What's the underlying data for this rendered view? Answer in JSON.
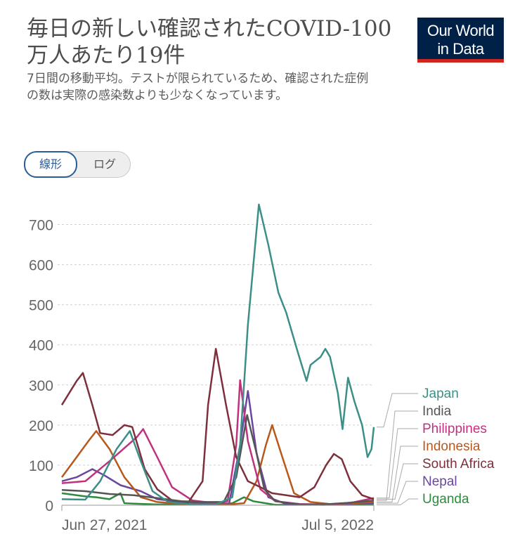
{
  "header": {
    "title": "毎日の新しい確認されたCOVID-100万人あたり19件",
    "subtitle": "7日間の移動平均。テストが限られているため、確認された症例の数は実際の感染数よりも少なくなっています。"
  },
  "logo": {
    "line1": "Our World",
    "line2": "in Data"
  },
  "scale_toggle": {
    "linear_label": "線形",
    "log_label": "ログ",
    "selected": "linear"
  },
  "colors": {
    "Japan": "#3b8f86",
    "India": "#555555",
    "Philippines": "#c0327e",
    "Indonesia": "#b7591d",
    "South Africa": "#7e2f3c",
    "Nepal": "#6b46a0",
    "Uganda": "#2f8a3e"
  },
  "chart_data": {
    "type": "line",
    "x_start_label": "Jun 27, 2021",
    "x_end_label": "Jul 5, 2022",
    "x_range": [
      "2021-06-01",
      "2022-07-05"
    ],
    "ylim": [
      0,
      750
    ],
    "yticks": [
      0,
      100,
      200,
      300,
      400,
      500,
      600,
      700
    ],
    "grid": true,
    "legend": "right",
    "series": [
      {
        "name": "Japan",
        "points": [
          [
            "2021-06-01",
            15
          ],
          [
            "2021-07-01",
            14
          ],
          [
            "2021-07-20",
            60
          ],
          [
            "2021-08-10",
            140
          ],
          [
            "2021-08-27",
            185
          ],
          [
            "2021-09-10",
            110
          ],
          [
            "2021-09-25",
            35
          ],
          [
            "2021-10-15",
            8
          ],
          [
            "2021-11-15",
            2
          ],
          [
            "2021-12-15",
            2
          ],
          [
            "2022-01-05",
            20
          ],
          [
            "2022-01-15",
            150
          ],
          [
            "2022-01-25",
            450
          ],
          [
            "2022-02-08",
            750
          ],
          [
            "2022-02-20",
            650
          ],
          [
            "2022-03-05",
            530
          ],
          [
            "2022-03-15",
            480
          ],
          [
            "2022-03-30",
            380
          ],
          [
            "2022-04-10",
            310
          ],
          [
            "2022-04-15",
            350
          ],
          [
            "2022-04-28",
            370
          ],
          [
            "2022-05-04",
            390
          ],
          [
            "2022-05-10",
            370
          ],
          [
            "2022-05-20",
            280
          ],
          [
            "2022-05-26",
            190
          ],
          [
            "2022-06-02",
            318
          ],
          [
            "2022-06-10",
            260
          ],
          [
            "2022-06-20",
            200
          ],
          [
            "2022-06-27",
            120
          ],
          [
            "2022-07-02",
            140
          ],
          [
            "2022-07-05",
            195
          ]
        ]
      },
      {
        "name": "India",
        "points": [
          [
            "2021-06-01",
            38
          ],
          [
            "2021-07-01",
            35
          ],
          [
            "2021-08-01",
            28
          ],
          [
            "2021-09-01",
            25
          ],
          [
            "2021-10-01",
            18
          ],
          [
            "2021-11-01",
            10
          ],
          [
            "2021-12-01",
            8
          ],
          [
            "2021-12-25",
            8
          ],
          [
            "2022-01-10",
            70
          ],
          [
            "2022-01-24",
            225
          ],
          [
            "2022-02-05",
            130
          ],
          [
            "2022-02-15",
            40
          ],
          [
            "2022-03-01",
            10
          ],
          [
            "2022-04-01",
            2
          ],
          [
            "2022-05-01",
            2
          ],
          [
            "2022-06-01",
            6
          ],
          [
            "2022-07-05",
            12
          ]
        ]
      },
      {
        "name": "Philippines",
        "points": [
          [
            "2021-06-01",
            55
          ],
          [
            "2021-07-01",
            60
          ],
          [
            "2021-08-01",
            110
          ],
          [
            "2021-09-05",
            170
          ],
          [
            "2021-09-13",
            190
          ],
          [
            "2021-10-01",
            120
          ],
          [
            "2021-10-20",
            45
          ],
          [
            "2021-11-15",
            12
          ],
          [
            "2021-12-15",
            5
          ],
          [
            "2021-12-30",
            10
          ],
          [
            "2022-01-10",
            150
          ],
          [
            "2022-01-15",
            312
          ],
          [
            "2022-01-25",
            160
          ],
          [
            "2022-02-10",
            40
          ],
          [
            "2022-03-01",
            10
          ],
          [
            "2022-04-01",
            3
          ],
          [
            "2022-05-01",
            2
          ],
          [
            "2022-06-01",
            4
          ],
          [
            "2022-07-05",
            18
          ]
        ]
      },
      {
        "name": "Indonesia",
        "points": [
          [
            "2021-06-01",
            70
          ],
          [
            "2021-06-20",
            120
          ],
          [
            "2021-07-05",
            160
          ],
          [
            "2021-07-15",
            185
          ],
          [
            "2021-08-01",
            140
          ],
          [
            "2021-08-20",
            70
          ],
          [
            "2021-09-10",
            20
          ],
          [
            "2021-10-01",
            8
          ],
          [
            "2021-11-01",
            3
          ],
          [
            "2021-12-01",
            2
          ],
          [
            "2022-01-01",
            2
          ],
          [
            "2022-01-20",
            5
          ],
          [
            "2022-02-05",
            60
          ],
          [
            "2022-02-17",
            150
          ],
          [
            "2022-02-25",
            200
          ],
          [
            "2022-03-10",
            120
          ],
          [
            "2022-03-25",
            30
          ],
          [
            "2022-04-15",
            8
          ],
          [
            "2022-05-15",
            2
          ],
          [
            "2022-07-05",
            8
          ]
        ]
      },
      {
        "name": "South Africa",
        "points": [
          [
            "2021-06-01",
            250
          ],
          [
            "2021-06-20",
            310
          ],
          [
            "2021-06-28",
            330
          ],
          [
            "2021-07-10",
            250
          ],
          [
            "2021-07-20",
            180
          ],
          [
            "2021-08-05",
            175
          ],
          [
            "2021-08-20",
            200
          ],
          [
            "2021-08-30",
            195
          ],
          [
            "2021-09-15",
            90
          ],
          [
            "2021-10-01",
            40
          ],
          [
            "2021-10-20",
            12
          ],
          [
            "2021-11-10",
            8
          ],
          [
            "2021-11-28",
            60
          ],
          [
            "2021-12-05",
            250
          ],
          [
            "2021-12-15",
            390
          ],
          [
            "2021-12-28",
            250
          ],
          [
            "2022-01-10",
            120
          ],
          [
            "2022-01-25",
            60
          ],
          [
            "2022-02-10",
            45
          ],
          [
            "2022-02-25",
            30
          ],
          [
            "2022-03-15",
            25
          ],
          [
            "2022-04-01",
            20
          ],
          [
            "2022-04-20",
            45
          ],
          [
            "2022-05-05",
            100
          ],
          [
            "2022-05-15",
            128
          ],
          [
            "2022-05-25",
            115
          ],
          [
            "2022-06-05",
            60
          ],
          [
            "2022-06-20",
            25
          ],
          [
            "2022-07-05",
            15
          ]
        ]
      },
      {
        "name": "Nepal",
        "points": [
          [
            "2021-06-01",
            60
          ],
          [
            "2021-06-20",
            70
          ],
          [
            "2021-07-10",
            90
          ],
          [
            "2021-07-25",
            75
          ],
          [
            "2021-08-15",
            50
          ],
          [
            "2021-09-10",
            35
          ],
          [
            "2021-10-01",
            15
          ],
          [
            "2021-11-01",
            8
          ],
          [
            "2021-12-01",
            5
          ],
          [
            "2022-01-01",
            4
          ],
          [
            "2022-01-15",
            150
          ],
          [
            "2022-01-25",
            285
          ],
          [
            "2022-02-05",
            130
          ],
          [
            "2022-02-20",
            20
          ],
          [
            "2022-03-15",
            3
          ],
          [
            "2022-05-01",
            1
          ],
          [
            "2022-07-05",
            5
          ]
        ]
      },
      {
        "name": "Uganda",
        "points": [
          [
            "2021-06-01",
            30
          ],
          [
            "2021-06-20",
            25
          ],
          [
            "2021-07-01",
            22
          ],
          [
            "2021-07-15",
            20
          ],
          [
            "2021-08-01",
            15
          ],
          [
            "2021-08-15",
            30
          ],
          [
            "2021-08-20",
            5
          ],
          [
            "2021-09-01",
            4
          ],
          [
            "2021-10-01",
            2
          ],
          [
            "2021-12-01",
            2
          ],
          [
            "2022-01-05",
            5
          ],
          [
            "2022-01-20",
            20
          ],
          [
            "2022-02-01",
            10
          ],
          [
            "2022-03-01",
            1
          ],
          [
            "2022-07-05",
            1
          ]
        ]
      }
    ]
  }
}
